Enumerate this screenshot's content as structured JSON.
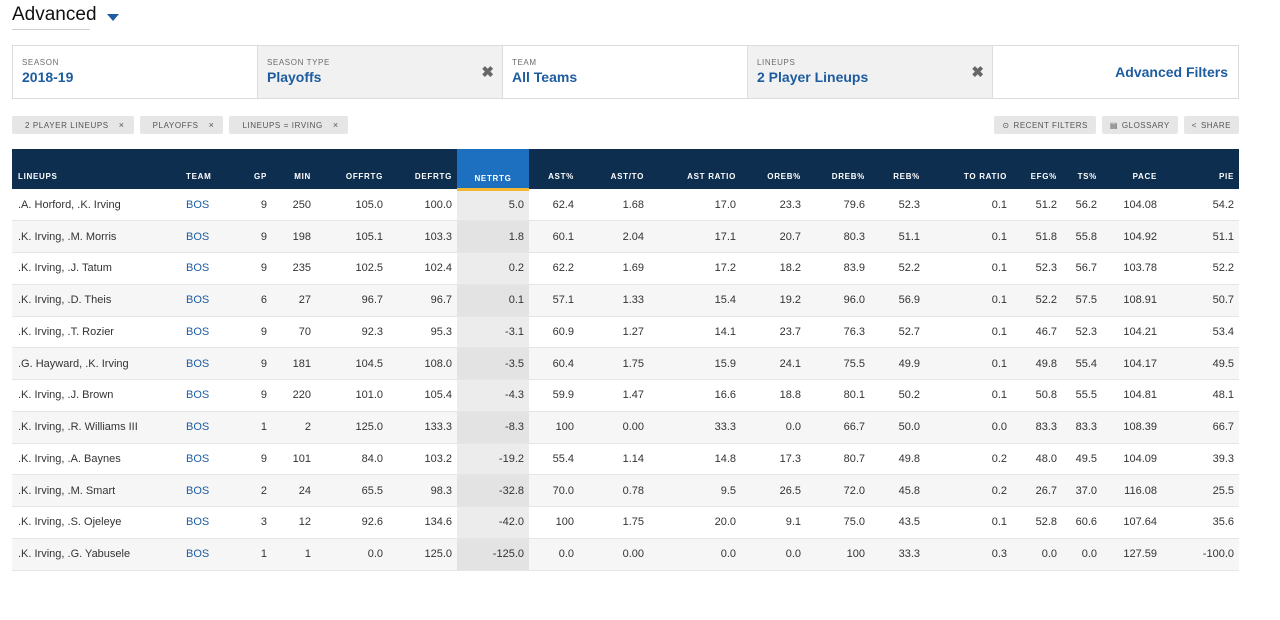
{
  "mode": {
    "label": "Advanced"
  },
  "filters": [
    {
      "caption": "SEASON",
      "value": "2018-19",
      "clearable": false
    },
    {
      "caption": "SEASON TYPE",
      "value": "Playoffs",
      "clearable": true
    },
    {
      "caption": "TEAM",
      "value": "All Teams",
      "clearable": false
    },
    {
      "caption": "LINEUPS",
      "value": "2 Player Lineups",
      "clearable": true
    }
  ],
  "advanced_filters_label": "Advanced Filters",
  "clear_glyph": "✖",
  "chips": [
    {
      "label": "2 PLAYER LINEUPS",
      "x": "×"
    },
    {
      "label": "PLAYOFFS",
      "x": "×"
    },
    {
      "label": "LINEUPS = IRVING",
      "x": "×"
    }
  ],
  "actions": [
    {
      "icon": "clock-icon",
      "glyph": "⊙",
      "label": "RECENT FILTERS"
    },
    {
      "icon": "book-icon",
      "glyph": "▤",
      "label": "GLOSSARY"
    },
    {
      "icon": "share-icon",
      "glyph": "<",
      "label": "SHARE"
    }
  ],
  "table": {
    "headers": [
      "LINEUPS",
      "TEAM",
      "GP",
      "MIN",
      "OFFRTG",
      "DEFRTG",
      "NETRTG",
      "AST%",
      "AST/TO",
      "AST RATIO",
      "OREB%",
      "DREB%",
      "REB%",
      "TO RATIO",
      "EFG%",
      "TS%",
      "PACE",
      "PIE"
    ],
    "sorted_column": 6,
    "rows": [
      [
        ".A. Horford, .K. Irving",
        "BOS",
        "9",
        "250",
        "105.0",
        "100.0",
        "5.0",
        "62.4",
        "1.68",
        "17.0",
        "23.3",
        "79.6",
        "52.3",
        "0.1",
        "51.2",
        "56.2",
        "104.08",
        "54.2"
      ],
      [
        ".K. Irving, .M. Morris",
        "BOS",
        "9",
        "198",
        "105.1",
        "103.3",
        "1.8",
        "60.1",
        "2.04",
        "17.1",
        "20.7",
        "80.3",
        "51.1",
        "0.1",
        "51.8",
        "55.8",
        "104.92",
        "51.1"
      ],
      [
        ".K. Irving, .J. Tatum",
        "BOS",
        "9",
        "235",
        "102.5",
        "102.4",
        "0.2",
        "62.2",
        "1.69",
        "17.2",
        "18.2",
        "83.9",
        "52.2",
        "0.1",
        "52.3",
        "56.7",
        "103.78",
        "52.2"
      ],
      [
        ".K. Irving, .D. Theis",
        "BOS",
        "6",
        "27",
        "96.7",
        "96.7",
        "0.1",
        "57.1",
        "1.33",
        "15.4",
        "19.2",
        "96.0",
        "56.9",
        "0.1",
        "52.2",
        "57.5",
        "108.91",
        "50.7"
      ],
      [
        ".K. Irving, .T. Rozier",
        "BOS",
        "9",
        "70",
        "92.3",
        "95.3",
        "-3.1",
        "60.9",
        "1.27",
        "14.1",
        "23.7",
        "76.3",
        "52.7",
        "0.1",
        "46.7",
        "52.3",
        "104.21",
        "53.4"
      ],
      [
        ".G. Hayward, .K. Irving",
        "BOS",
        "9",
        "181",
        "104.5",
        "108.0",
        "-3.5",
        "60.4",
        "1.75",
        "15.9",
        "24.1",
        "75.5",
        "49.9",
        "0.1",
        "49.8",
        "55.4",
        "104.17",
        "49.5"
      ],
      [
        ".K. Irving, .J. Brown",
        "BOS",
        "9",
        "220",
        "101.0",
        "105.4",
        "-4.3",
        "59.9",
        "1.47",
        "16.6",
        "18.8",
        "80.1",
        "50.2",
        "0.1",
        "50.8",
        "55.5",
        "104.81",
        "48.1"
      ],
      [
        ".K. Irving, .R. Williams III",
        "BOS",
        "1",
        "2",
        "125.0",
        "133.3",
        "-8.3",
        "100",
        "0.00",
        "33.3",
        "0.0",
        "66.7",
        "50.0",
        "0.0",
        "83.3",
        "83.3",
        "108.39",
        "66.7"
      ],
      [
        ".K. Irving, .A. Baynes",
        "BOS",
        "9",
        "101",
        "84.0",
        "103.2",
        "-19.2",
        "55.4",
        "1.14",
        "14.8",
        "17.3",
        "80.7",
        "49.8",
        "0.2",
        "48.0",
        "49.5",
        "104.09",
        "39.3"
      ],
      [
        ".K. Irving, .M. Smart",
        "BOS",
        "2",
        "24",
        "65.5",
        "98.3",
        "-32.8",
        "70.0",
        "0.78",
        "9.5",
        "26.5",
        "72.0",
        "45.8",
        "0.2",
        "26.7",
        "37.0",
        "116.08",
        "25.5"
      ],
      [
        ".K. Irving, .S. Ojeleye",
        "BOS",
        "3",
        "12",
        "92.6",
        "134.6",
        "-42.0",
        "100",
        "1.75",
        "20.0",
        "9.1",
        "75.0",
        "43.5",
        "0.1",
        "52.8",
        "60.6",
        "107.64",
        "35.6"
      ],
      [
        ".K. Irving, .G. Yabusele",
        "BOS",
        "1",
        "1",
        "0.0",
        "125.0",
        "-125.0",
        "0.0",
        "0.00",
        "0.0",
        "0.0",
        "100",
        "33.3",
        "0.3",
        "0.0",
        "0.0",
        "127.59",
        "-100.0"
      ]
    ]
  },
  "colors": {
    "header_bg": "#0e2e4f",
    "sorted_header_bg": "#1d6fc0",
    "sorted_underline": "#f2b632",
    "link": "#1d5c9f"
  }
}
